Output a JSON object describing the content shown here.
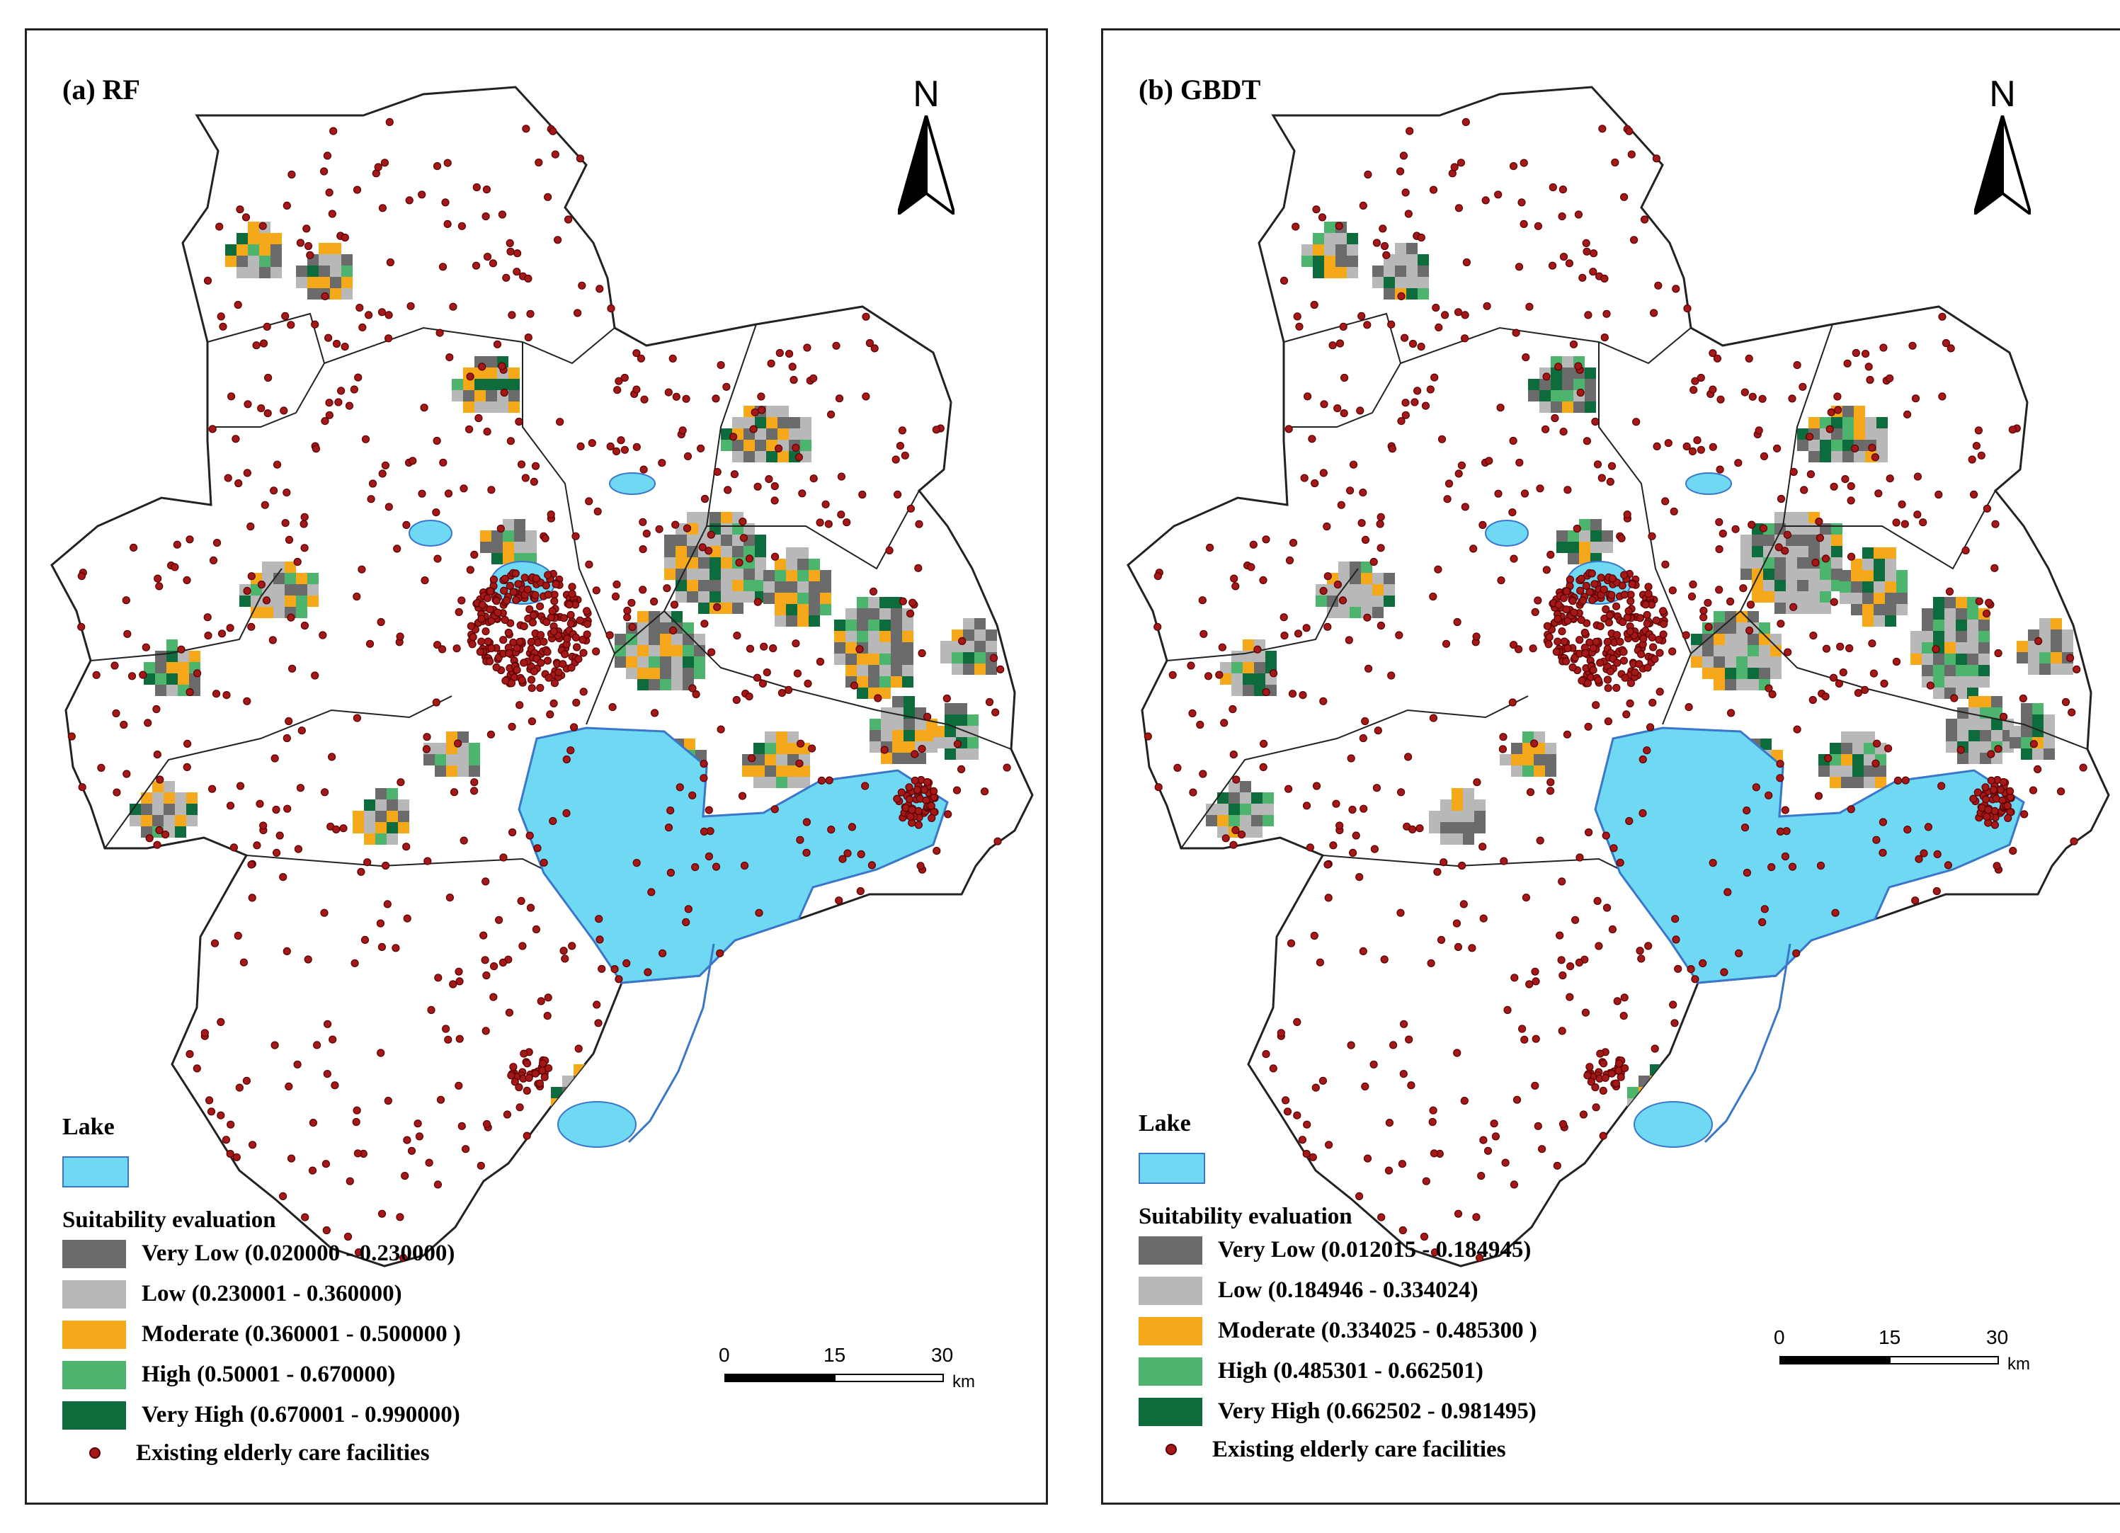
{
  "panels": [
    {
      "title": "(a) RF",
      "north_label": "N",
      "legend": {
        "lake_label": "Lake",
        "suitability_title": "Suitability evaluation",
        "classes": [
          {
            "label": "Very Low (0.020000 - 0.230000)",
            "color": "#6b6b6b"
          },
          {
            "label": "Low (0.230001 - 0.360000)",
            "color": "#b8b8b8"
          },
          {
            "label": "Moderate (0.360001 - 0.500000 )",
            "color": "#f5a81a"
          },
          {
            "label": "High (0.50001 - 0.670000)",
            "color": "#4cb46c"
          },
          {
            "label": "Very High (0.670001 - 0.990000)",
            "color": "#0e6b3c"
          }
        ],
        "facilities_label": "Existing elderly care facilities"
      },
      "scale": {
        "ticks": [
          "0",
          "15",
          "30"
        ],
        "unit": "km"
      }
    },
    {
      "title": "(b) GBDT",
      "north_label": "N",
      "legend": {
        "lake_label": "Lake",
        "suitability_title": "Suitability evaluation",
        "classes": [
          {
            "label": "Very Low (0.012015 - 0.184945)",
            "color": "#6b6b6b"
          },
          {
            "label": "Low (0.184946 - 0.334024)",
            "color": "#b8b8b8"
          },
          {
            "label": "Moderate (0.334025 - 0.485300 )",
            "color": "#f5a81a"
          },
          {
            "label": "High (0.485301 - 0.662501)",
            "color": "#4cb46c"
          },
          {
            "label": "Very High (0.662502 - 0.981495)",
            "color": "#0e6b3c"
          }
        ],
        "facilities_label": "Existing elderly care facilities"
      },
      "scale": {
        "ticks": [
          "0",
          "15",
          "30"
        ],
        "unit": "km"
      }
    }
  ],
  "colors": {
    "lake": "#6fd8f3",
    "lake_outline": "#3a76c9",
    "facility": "#a51818",
    "boundary": "#222222"
  }
}
